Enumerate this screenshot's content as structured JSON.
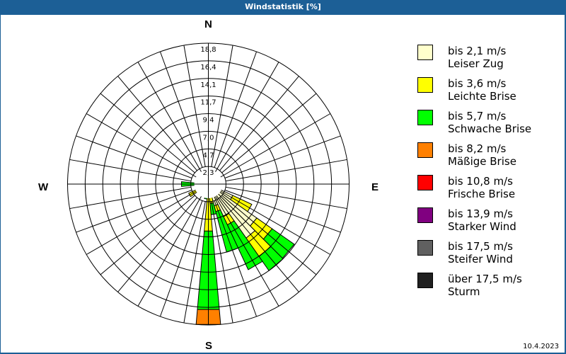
{
  "window": {
    "title": "Windstatistik [%]"
  },
  "date": "10.4.2023",
  "directions": {
    "n": "N",
    "e": "E",
    "s": "S",
    "w": "W"
  },
  "legend": [
    {
      "range": "bis 2,1 m/s",
      "label": "Leiser Zug",
      "color": "#ffffcc"
    },
    {
      "range": "bis 3,6 m/s",
      "label": "Leichte Brise",
      "color": "#ffff00"
    },
    {
      "range": "bis 5,7 m/s",
      "label": "Schwache Brise",
      "color": "#00ff00"
    },
    {
      "range": "bis 8,2 m/s",
      "label": "Mäßige Brise",
      "color": "#ff8000"
    },
    {
      "range": "bis 10,8 m/s",
      "label": "Frische Brise",
      "color": "#ff0000"
    },
    {
      "range": "bis 13,9 m/s",
      "label": "Starker Wind",
      "color": "#800080"
    },
    {
      "range": "bis 17,5 m/s",
      "label": "Steifer Wind",
      "color": "#606060"
    },
    {
      "range": "über 17,5 m/s",
      "label": "Sturm",
      "color": "#202020"
    }
  ],
  "chart_data": {
    "type": "wind-rose",
    "title": "Windstatistik [%]",
    "unit": "%",
    "radial_ticks": [
      "2,3",
      "4,7",
      "7,0",
      "9,4",
      "11,7",
      "14,1",
      "16,4",
      "18,8"
    ],
    "radial_max": 18.8,
    "sector_width_deg": 10,
    "categories": [
      "bis 2,1 m/s",
      "bis 3,6 m/s",
      "bis 5,7 m/s",
      "bis 8,2 m/s",
      "bis 10,8 m/s",
      "bis 13,9 m/s",
      "bis 17,5 m/s",
      "über 17,5 m/s"
    ],
    "sectors": [
      {
        "dir": 0,
        "values": [
          0.3,
          0.2,
          0.0,
          0,
          0,
          0,
          0,
          0
        ]
      },
      {
        "dir": 30,
        "values": [
          0.2,
          0.1,
          0.0,
          0,
          0,
          0,
          0,
          0
        ]
      },
      {
        "dir": 60,
        "values": [
          0.2,
          0.1,
          0.0,
          0,
          0,
          0,
          0,
          0
        ]
      },
      {
        "dir": 90,
        "values": [
          0.3,
          0.2,
          0.0,
          0,
          0,
          0,
          0,
          0
        ]
      },
      {
        "dir": 100,
        "values": [
          0.4,
          0.3,
          0.0,
          0,
          0,
          0,
          0,
          0
        ]
      },
      {
        "dir": 110,
        "values": [
          0.6,
          0.4,
          0.0,
          0,
          0,
          0,
          0,
          0
        ]
      },
      {
        "dir": 120,
        "values": [
          3.6,
          2.8,
          0.0,
          0,
          0,
          0,
          0,
          0
        ]
      },
      {
        "dir": 130,
        "values": [
          7.9,
          2.5,
          3.6,
          0,
          0,
          0,
          0,
          0
        ]
      },
      {
        "dir": 140,
        "values": [
          8.8,
          3.0,
          2.3,
          0,
          0,
          0,
          0,
          0
        ]
      },
      {
        "dir": 150,
        "values": [
          4.8,
          1.2,
          6.6,
          0,
          0,
          0,
          0,
          0
        ]
      },
      {
        "dir": 160,
        "values": [
          3.0,
          0.8,
          5.6,
          0,
          0,
          0,
          0,
          0
        ]
      },
      {
        "dir": 170,
        "values": [
          1.8,
          0.8,
          1.5,
          0,
          0,
          0,
          0,
          0
        ]
      },
      {
        "dir": 180,
        "values": [
          1.2,
          5.1,
          10.5,
          2.0,
          0,
          0,
          0,
          0
        ]
      },
      {
        "dir": 190,
        "values": [
          0.5,
          1.0,
          0.5,
          0,
          0,
          0,
          0,
          0
        ]
      },
      {
        "dir": 200,
        "values": [
          0.4,
          0.3,
          0.6,
          0,
          0,
          0,
          0,
          0
        ]
      },
      {
        "dir": 210,
        "values": [
          0.3,
          0.3,
          1.1,
          0,
          0,
          0,
          0,
          0
        ]
      },
      {
        "dir": 220,
        "values": [
          0.3,
          0.4,
          0.3,
          0,
          0,
          0,
          0,
          0
        ]
      },
      {
        "dir": 240,
        "values": [
          0.4,
          2.5,
          0.0,
          0,
          0,
          0,
          0,
          0
        ]
      },
      {
        "dir": 250,
        "values": [
          0.4,
          0.6,
          0.0,
          0,
          0,
          0,
          0,
          0
        ]
      },
      {
        "dir": 260,
        "values": [
          0.8,
          1.0,
          0.0,
          0,
          0,
          0,
          0,
          0
        ]
      },
      {
        "dir": 270,
        "values": [
          0.5,
          0.8,
          2.3,
          0,
          0,
          0,
          0,
          0
        ]
      },
      {
        "dir": 280,
        "values": [
          0.3,
          0.3,
          0.2,
          0,
          0,
          0,
          0,
          0
        ]
      },
      {
        "dir": 300,
        "values": [
          0.2,
          0.2,
          0.0,
          0,
          0,
          0,
          0,
          0
        ]
      },
      {
        "dir": 330,
        "values": [
          0.2,
          0.2,
          0.0,
          0,
          0,
          0,
          0,
          0
        ]
      }
    ],
    "grid": true,
    "legend_position": "right"
  }
}
